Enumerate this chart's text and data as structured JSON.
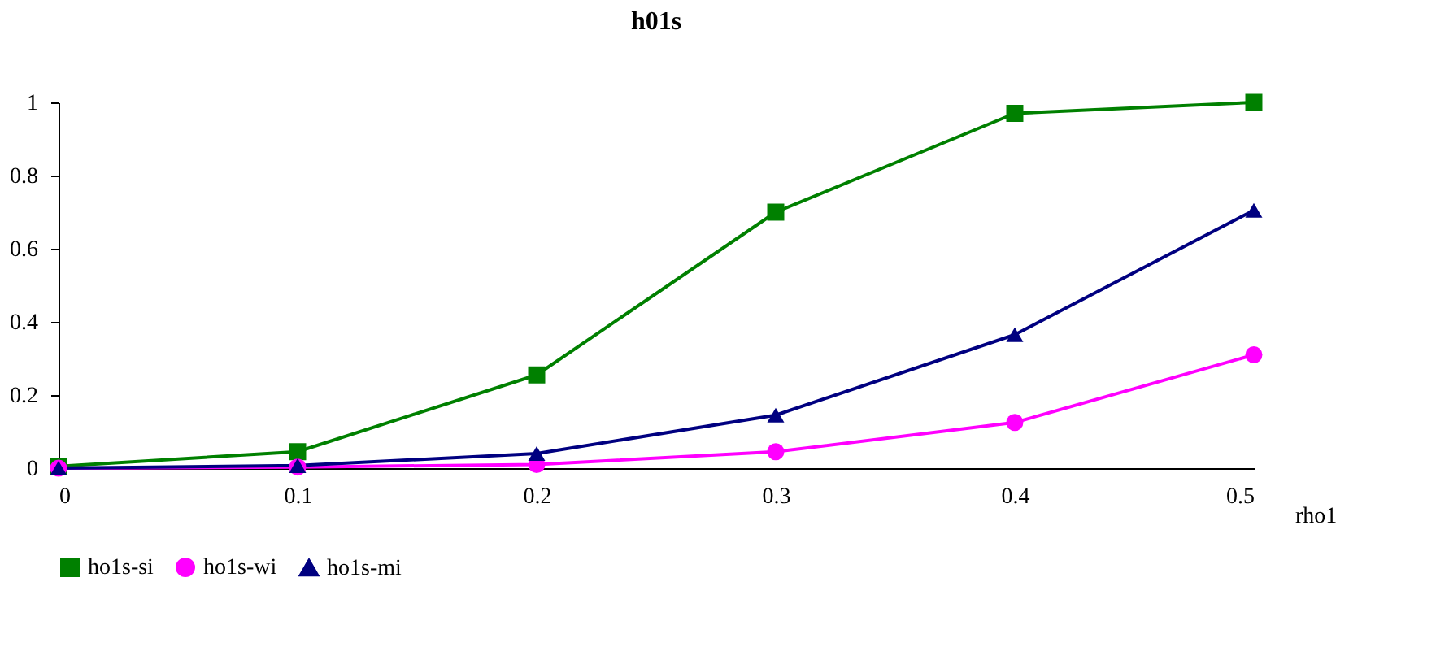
{
  "chart_data": {
    "type": "line",
    "title": "h01s",
    "xlabel": "rho1",
    "x": [
      0,
      0.1,
      0.2,
      0.3,
      0.4,
      0.5
    ],
    "xlim": [
      0,
      0.5
    ],
    "xticks": [
      0,
      0.1,
      0.2,
      0.3,
      0.4,
      0.5
    ],
    "ylim": [
      0,
      1
    ],
    "yticks": [
      0,
      0.2,
      0.4,
      0.6,
      0.8,
      1
    ],
    "grid": false,
    "legend": "bottom",
    "line_style": "solid",
    "series": [
      {
        "name": "ho1s-si",
        "color": "#008000",
        "marker": "square",
        "values": [
          0.005,
          0.045,
          0.255,
          0.7,
          0.97,
          1.0
        ]
      },
      {
        "name": "ho1s-wi",
        "color": "#ff00ff",
        "marker": "circle",
        "values": [
          0.0,
          0.003,
          0.01,
          0.045,
          0.125,
          0.31
        ]
      },
      {
        "name": "ho1s-mi",
        "color": "#000080",
        "marker": "triangle",
        "values": [
          0.0,
          0.007,
          0.04,
          0.145,
          0.365,
          0.705
        ]
      }
    ]
  }
}
